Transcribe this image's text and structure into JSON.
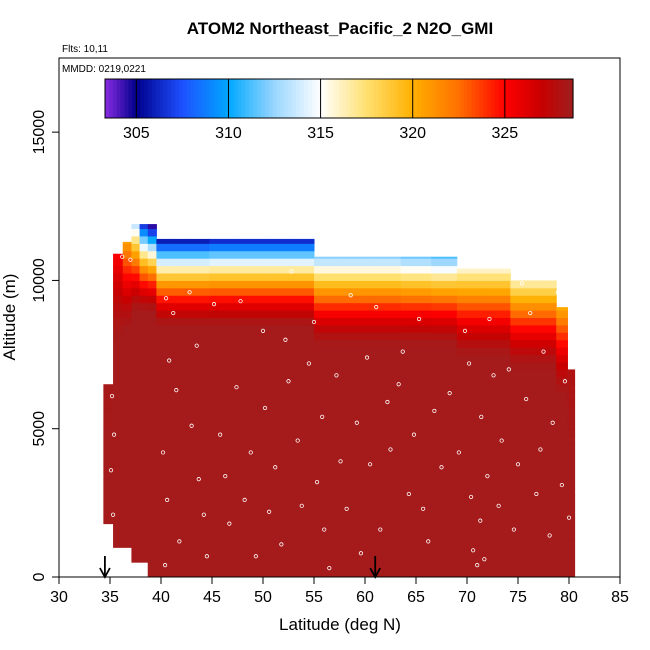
{
  "chart_data": {
    "type": "heatmap",
    "title": "ATOM2 Northeast_Pacific_2 N2O_GMI",
    "flights": "Flts: 10,11",
    "dates": "MMDD: 0219,0221",
    "xlabel": "Latitude (deg N)",
    "ylabel": "Altitude (m)",
    "xlim": [
      30,
      85
    ],
    "ylim": [
      0,
      17500
    ],
    "xticks": [
      30,
      35,
      40,
      45,
      50,
      55,
      60,
      65,
      70,
      75,
      80,
      85
    ],
    "yticks": [
      0,
      5000,
      10000,
      15000
    ],
    "colorbar": {
      "range": [
        303.3,
        328.7
      ],
      "ticks": [
        305,
        310,
        315,
        320,
        325
      ],
      "stops": [
        {
          "v": 303.3,
          "color": "#8a2be2"
        },
        {
          "v": 305.0,
          "color": "#00008b"
        },
        {
          "v": 307.5,
          "color": "#1e50ff"
        },
        {
          "v": 310.0,
          "color": "#00a8ff"
        },
        {
          "v": 312.5,
          "color": "#9ad6ff"
        },
        {
          "v": 315.0,
          "color": "#ffffff"
        },
        {
          "v": 317.5,
          "color": "#ffe070"
        },
        {
          "v": 320.0,
          "color": "#ffb000"
        },
        {
          "v": 322.5,
          "color": "#ff7000"
        },
        {
          "v": 325.0,
          "color": "#ff0000"
        },
        {
          "v": 327.0,
          "color": "#c80000"
        },
        {
          "v": 328.7,
          "color": "#a01e1e"
        }
      ]
    },
    "columns": [
      {
        "lat": 34.8,
        "bottom": 1800,
        "top": 6500,
        "surface": 328.5,
        "trop": 328.4
      },
      {
        "lat": 35.8,
        "bottom": 1000,
        "top": 10900,
        "surface": 328.5,
        "trop": 325.0
      },
      {
        "lat": 36.7,
        "bottom": 1000,
        "top": 11300,
        "surface": 328.5,
        "trop": 320.5
      },
      {
        "lat": 37.5,
        "bottom": 500,
        "top": 11900,
        "surface": 328.5,
        "trop": 313.0
      },
      {
        "lat": 38.3,
        "bottom": 500,
        "top": 11900,
        "surface": 328.5,
        "trop": 306.0
      },
      {
        "lat": 39.1,
        "bottom": 0,
        "top": 11900,
        "surface": 328.5,
        "trop": 303.5
      },
      {
        "lat": 40.0,
        "bottom": 0,
        "top": 11400,
        "surface": 328.5,
        "trop": 305.0
      },
      {
        "lat": 41.5,
        "bottom": 0,
        "top": 11400,
        "surface": 328.5,
        "trop": 305.0
      },
      {
        "lat": 43.5,
        "bottom": 0,
        "top": 11400,
        "surface": 328.5,
        "trop": 305.0
      },
      {
        "lat": 46.0,
        "bottom": 0,
        "top": 11400,
        "surface": 328.5,
        "trop": 305.5
      },
      {
        "lat": 49.0,
        "bottom": 0,
        "top": 11400,
        "surface": 328.5,
        "trop": 305.5
      },
      {
        "lat": 52.0,
        "bottom": 0,
        "top": 11400,
        "surface": 328.5,
        "trop": 305.5
      },
      {
        "lat": 54.0,
        "bottom": 0,
        "top": 11400,
        "surface": 328.5,
        "trop": 305.5
      },
      {
        "lat": 56.0,
        "bottom": 0,
        "top": 10800,
        "surface": 328.5,
        "trop": 312.0
      },
      {
        "lat": 59.0,
        "bottom": 0,
        "top": 10800,
        "surface": 328.5,
        "trop": 312.0
      },
      {
        "lat": 62.0,
        "bottom": 0,
        "top": 10800,
        "surface": 328.5,
        "trop": 312.0
      },
      {
        "lat": 65.0,
        "bottom": 0,
        "top": 10800,
        "surface": 328.5,
        "trop": 311.5
      },
      {
        "lat": 68.0,
        "bottom": 0,
        "top": 10800,
        "surface": 328.5,
        "trop": 311.0
      },
      {
        "lat": 70.0,
        "bottom": 0,
        "top": 10400,
        "surface": 328.5,
        "trop": 315.5
      },
      {
        "lat": 73.0,
        "bottom": 0,
        "top": 10400,
        "surface": 328.5,
        "trop": 315.5
      },
      {
        "lat": 75.5,
        "bottom": 0,
        "top": 10000,
        "surface": 328.5,
        "trop": 316.0
      },
      {
        "lat": 78.0,
        "bottom": 0,
        "top": 10000,
        "surface": 328.5,
        "trop": 316.0
      },
      {
        "lat": 79.5,
        "bottom": 0,
        "top": 9100,
        "surface": 328.5,
        "trop": 320.0
      },
      {
        "lat": 80.2,
        "bottom": 0,
        "top": 7000,
        "surface": 328.5,
        "trop": 328.0
      }
    ],
    "arrows_lat": [
      34.5,
      61.0
    ],
    "sample_points": [
      [
        35.2,
        6100
      ],
      [
        35.4,
        4800
      ],
      [
        35.1,
        3600
      ],
      [
        35.3,
        2100
      ],
      [
        36.2,
        10800
      ],
      [
        37.0,
        10700
      ],
      [
        40.5,
        9400
      ],
      [
        41.2,
        8900
      ],
      [
        40.8,
        7300
      ],
      [
        41.5,
        6300
      ],
      [
        40.2,
        4200
      ],
      [
        40.6,
        2600
      ],
      [
        40.4,
        400
      ],
      [
        41.8,
        1200
      ],
      [
        42.8,
        9600
      ],
      [
        43.5,
        7800
      ],
      [
        43.0,
        5100
      ],
      [
        43.7,
        3300
      ],
      [
        44.2,
        2100
      ],
      [
        44.5,
        700
      ],
      [
        45.2,
        9200
      ],
      [
        45.8,
        4800
      ],
      [
        46.3,
        3400
      ],
      [
        46.7,
        1800
      ],
      [
        47.4,
        6400
      ],
      [
        47.8,
        9300
      ],
      [
        48.2,
        2600
      ],
      [
        48.8,
        4200
      ],
      [
        49.3,
        700
      ],
      [
        50.0,
        8300
      ],
      [
        50.2,
        5700
      ],
      [
        50.6,
        2200
      ],
      [
        51.2,
        3700
      ],
      [
        51.8,
        1100
      ],
      [
        52.5,
        6600
      ],
      [
        52.2,
        8000
      ],
      [
        52.8,
        10300
      ],
      [
        53.4,
        4600
      ],
      [
        53.8,
        2400
      ],
      [
        54.5,
        7200
      ],
      [
        55.0,
        8600
      ],
      [
        55.3,
        3200
      ],
      [
        55.8,
        5400
      ],
      [
        56.0,
        1600
      ],
      [
        56.5,
        300
      ],
      [
        57.2,
        6800
      ],
      [
        57.6,
        3900
      ],
      [
        58.2,
        2300
      ],
      [
        58.6,
        9500
      ],
      [
        59.2,
        5200
      ],
      [
        59.6,
        800
      ],
      [
        60.2,
        7400
      ],
      [
        60.5,
        3800
      ],
      [
        61.1,
        9100
      ],
      [
        61.5,
        1600
      ],
      [
        62.2,
        5900
      ],
      [
        62.5,
        4300
      ],
      [
        63.3,
        6500
      ],
      [
        63.7,
        7600
      ],
      [
        64.3,
        2800
      ],
      [
        64.8,
        4800
      ],
      [
        65.3,
        8700
      ],
      [
        65.7,
        2300
      ],
      [
        66.2,
        1200
      ],
      [
        66.8,
        5600
      ],
      [
        67.5,
        3700
      ],
      [
        68.3,
        6200
      ],
      [
        69.2,
        4200
      ],
      [
        69.8,
        8300
      ],
      [
        70.2,
        7200
      ],
      [
        70.4,
        2700
      ],
      [
        70.6,
        900
      ],
      [
        71.0,
        400
      ],
      [
        71.3,
        1900
      ],
      [
        71.4,
        5400
      ],
      [
        71.7,
        600
      ],
      [
        72.0,
        3400
      ],
      [
        72.2,
        8700
      ],
      [
        72.6,
        6800
      ],
      [
        73.1,
        2400
      ],
      [
        73.4,
        4600
      ],
      [
        74.1,
        7000
      ],
      [
        74.6,
        1600
      ],
      [
        75.0,
        3800
      ],
      [
        75.4,
        9900
      ],
      [
        75.8,
        6000
      ],
      [
        76.2,
        8900
      ],
      [
        76.8,
        2800
      ],
      [
        77.2,
        4300
      ],
      [
        77.5,
        7600
      ],
      [
        78.1,
        1400
      ],
      [
        78.4,
        5200
      ],
      [
        78.9,
        9600
      ],
      [
        79.3,
        3100
      ],
      [
        79.6,
        6600
      ],
      [
        80.0,
        2000
      ]
    ]
  }
}
